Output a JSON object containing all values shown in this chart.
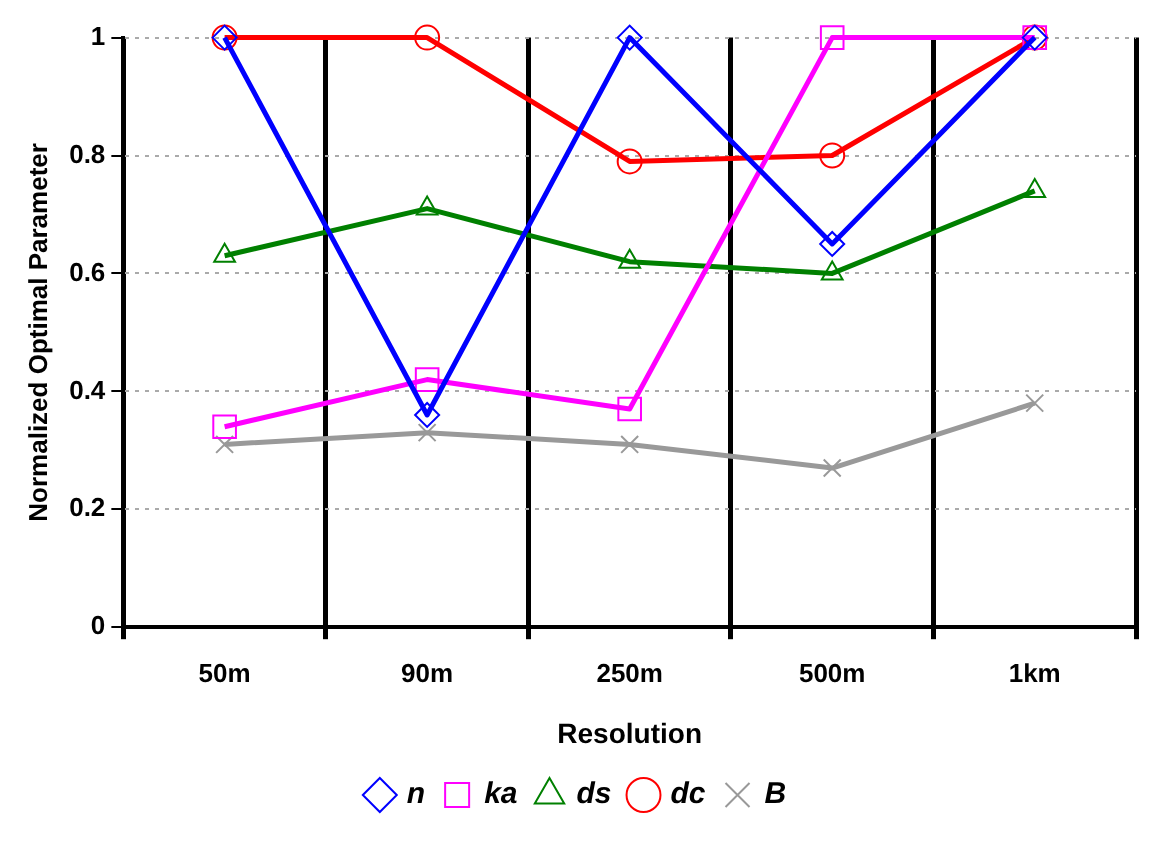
{
  "chart_data": {
    "type": "line",
    "xlabel": "Resolution",
    "ylabel": "Normalized Optimal Parameter",
    "categories": [
      "50m",
      "90m",
      "250m",
      "500m",
      "1km"
    ],
    "series": [
      {
        "name": "n",
        "color": "#0000ff",
        "marker": "diamond",
        "values": [
          1,
          0.36,
          1,
          0.65,
          1
        ]
      },
      {
        "name": "ka",
        "color": "#ff00ff",
        "marker": "square",
        "values": [
          0.34,
          0.42,
          0.37,
          1,
          1
        ]
      },
      {
        "name": "ds",
        "color": "#008000",
        "marker": "triangle",
        "values": [
          0.63,
          0.71,
          0.62,
          0.6,
          0.74
        ]
      },
      {
        "name": "dc",
        "color": "#ff0000",
        "marker": "circle",
        "values": [
          1,
          1,
          0.79,
          0.8,
          1
        ]
      },
      {
        "name": "B",
        "color": "#999999",
        "marker": "cross",
        "values": [
          0.31,
          0.33,
          0.31,
          0.27,
          0.38
        ]
      }
    ],
    "ylim": [
      0,
      1
    ],
    "yticks": [
      0,
      0.2,
      0.4,
      0.6,
      0.8,
      1
    ],
    "grid": true,
    "legend": "bottom",
    "line_style": "solid"
  }
}
